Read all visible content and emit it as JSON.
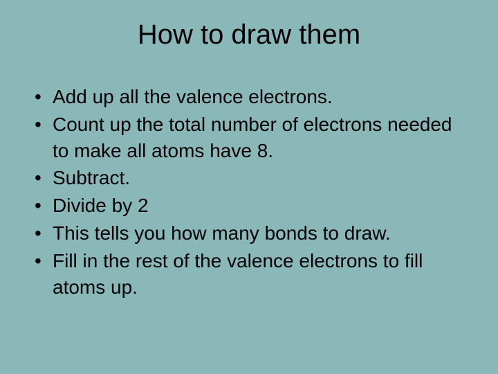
{
  "slide": {
    "title": "How to draw them",
    "bullets": [
      "Add up all the valence electrons.",
      "Count up the total number of electrons needed to make all atoms have 8.",
      "Subtract.",
      "Divide by 2",
      "This tells you how many bonds to draw.",
      "Fill in the rest of the valence electrons to fill atoms up."
    ],
    "background_color": "#8ab8b8",
    "text_color": "#000000",
    "title_fontsize": 40,
    "body_fontsize": 28,
    "font_family": "Arial"
  }
}
